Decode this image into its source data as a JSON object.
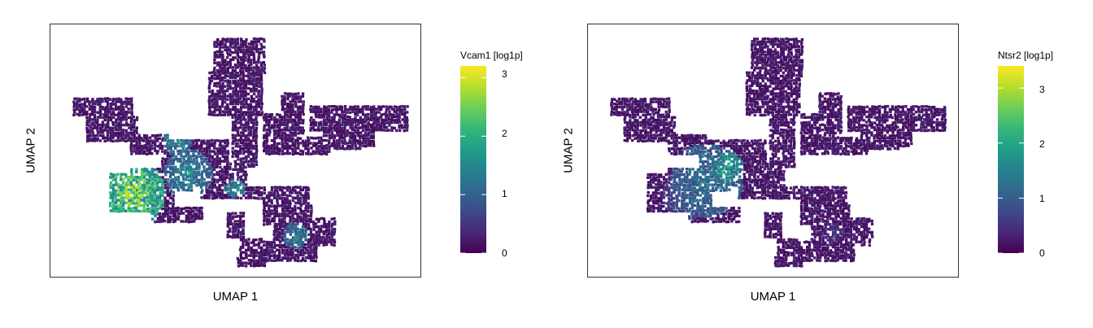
{
  "colors": {
    "viridis": [
      "#440154",
      "#482878",
      "#3e4989",
      "#31688e",
      "#26828e",
      "#1f9e89",
      "#35b779",
      "#6ece58",
      "#b5de2b",
      "#fde725"
    ],
    "frame": "#333333"
  },
  "chart_data": [
    {
      "type": "scatter",
      "xlabel": "UMAP 1",
      "ylabel": "UMAP 2",
      "legend_title": "Vcam1 [log1p]",
      "colorbar_ticks": [
        "0",
        "1",
        "2",
        "3"
      ],
      "color_range": [
        0,
        3.2
      ],
      "grid": false,
      "legend_position": "right",
      "expression_pattern": "high in left lobe cluster, low elsewhere"
    },
    {
      "type": "scatter",
      "xlabel": "UMAP 1",
      "ylabel": "UMAP 2",
      "legend_title": "Ntsr2 [log1p]",
      "colorbar_ticks": [
        "0",
        "1",
        "2",
        "3"
      ],
      "color_range": [
        0,
        3.4
      ],
      "grid": false,
      "legend_position": "right",
      "expression_pattern": "moderate in left lobe cluster, low elsewhere"
    }
  ]
}
